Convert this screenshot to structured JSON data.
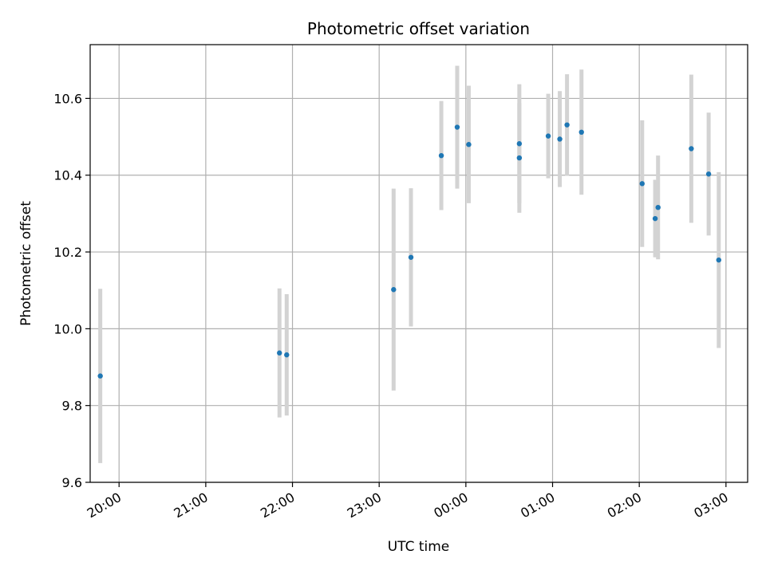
{
  "chart_data": {
    "type": "scatter",
    "title": "Photometric offset variation",
    "xlabel": "UTC time",
    "ylabel": "Photometric offset",
    "xlim": [
      "19:40",
      "03:15"
    ],
    "ylim": [
      9.6,
      10.74
    ],
    "grid": true,
    "x_tick_labels": [
      "20:00",
      "21:00",
      "22:00",
      "23:00",
      "00:00",
      "01:00",
      "02:00",
      "03:00"
    ],
    "y_tick_labels": [
      "9.6",
      "9.8",
      "10.0",
      "10.2",
      "10.4",
      "10.6"
    ],
    "marker_color": "#1f77b4",
    "errorbar_color": "#d3d3d3",
    "points": [
      {
        "x": "19:47",
        "y": 9.877,
        "yerr": 0.227
      },
      {
        "x": "21:51",
        "y": 9.937,
        "yerr": 0.168
      },
      {
        "x": "21:56",
        "y": 9.932,
        "yerr": 0.158
      },
      {
        "x": "23:10",
        "y": 10.102,
        "yerr": 0.263
      },
      {
        "x": "23:22",
        "y": 10.186,
        "yerr": 0.18
      },
      {
        "x": "23:43",
        "y": 10.451,
        "yerr": 0.142
      },
      {
        "x": "23:54",
        "y": 10.525,
        "yerr": 0.16
      },
      {
        "x": "00:02",
        "y": 10.48,
        "yerr": 0.153
      },
      {
        "x": "00:37",
        "y": 10.445,
        "yerr": 0.143
      },
      {
        "x": "00:37",
        "y": 10.482,
        "yerr": 0.155
      },
      {
        "x": "00:57",
        "y": 10.502,
        "yerr": 0.11
      },
      {
        "x": "01:05",
        "y": 10.494,
        "yerr": 0.125
      },
      {
        "x": "01:10",
        "y": 10.531,
        "yerr": 0.132
      },
      {
        "x": "01:20",
        "y": 10.512,
        "yerr": 0.163
      },
      {
        "x": "02:02",
        "y": 10.378,
        "yerr": 0.165
      },
      {
        "x": "02:11",
        "y": 10.287,
        "yerr": 0.101
      },
      {
        "x": "02:13",
        "y": 10.316,
        "yerr": 0.135
      },
      {
        "x": "02:36",
        "y": 10.469,
        "yerr": 0.193
      },
      {
        "x": "02:48",
        "y": 10.403,
        "yerr": 0.16
      },
      {
        "x": "02:55",
        "y": 10.179,
        "yerr": 0.229
      }
    ]
  }
}
